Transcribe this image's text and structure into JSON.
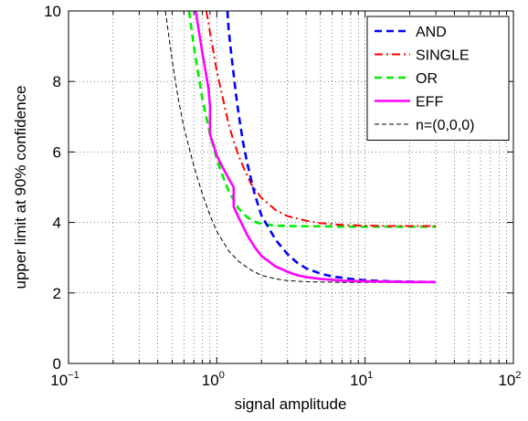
{
  "chart_data": {
    "type": "line",
    "title": "",
    "xlabel": "signal amplitude",
    "ylabel": "upper limit at 90% confidence",
    "xscale": "log",
    "xlim": [
      0.1,
      100
    ],
    "ylim": [
      0,
      10
    ],
    "grid": true,
    "legend_position": "top-right",
    "x_ticks": [
      {
        "base": "10",
        "exp": "−1"
      },
      {
        "base": "10",
        "exp": "0"
      },
      {
        "base": "10",
        "exp": "1"
      },
      {
        "base": "10",
        "exp": "2"
      }
    ],
    "y_ticks": [
      "0",
      "2",
      "4",
      "6",
      "8",
      "10"
    ],
    "series": [
      {
        "name": "AND",
        "color": "#0000ff",
        "style": "dashed",
        "x": [
          1.18,
          1.2,
          1.25,
          1.3,
          1.35,
          1.4,
          1.5,
          1.6,
          1.8,
          2.0,
          2.5,
          3.0,
          3.5,
          4.0,
          5.0,
          6.0,
          8.0,
          10.0,
          15.0,
          20.0,
          30.0
        ],
        "y": [
          10.0,
          9.5,
          8.8,
          8.2,
          7.6,
          7.1,
          6.3,
          5.7,
          4.8,
          4.2,
          3.5,
          3.1,
          2.85,
          2.7,
          2.55,
          2.47,
          2.4,
          2.36,
          2.33,
          2.32,
          2.31
        ]
      },
      {
        "name": "SINGLE",
        "color": "#ff0000",
        "style": "dash-dot",
        "x": [
          0.85,
          0.9,
          1.0,
          1.1,
          1.2,
          1.3,
          1.4,
          1.5,
          1.7,
          2.0,
          2.5,
          3.0,
          4.0,
          5.0,
          7.0,
          10.0,
          15.0,
          20.0,
          30.0
        ],
        "y": [
          10.0,
          9.4,
          8.3,
          7.5,
          6.8,
          6.3,
          5.9,
          5.6,
          5.1,
          4.7,
          4.35,
          4.18,
          4.05,
          3.98,
          3.93,
          3.91,
          3.9,
          3.9,
          3.9
        ]
      },
      {
        "name": "OR",
        "color": "#00ee00",
        "style": "dashed",
        "x": [
          0.65,
          0.7,
          0.75,
          0.8,
          0.9,
          1.0,
          1.1,
          1.2,
          1.4,
          1.6,
          1.8,
          2.0,
          2.5,
          3.0,
          4.0,
          5.0,
          7.0,
          10.0,
          15.0,
          20.0,
          30.0
        ],
        "y": [
          10.0,
          9.0,
          8.2,
          7.5,
          6.5,
          5.8,
          5.3,
          4.9,
          4.4,
          4.15,
          4.02,
          3.96,
          3.91,
          3.9,
          3.89,
          3.89,
          3.88,
          3.88,
          3.88,
          3.88,
          3.88
        ]
      },
      {
        "name": "EFF",
        "color": "#ff00ff",
        "style": "solid",
        "x": [
          0.72,
          0.8,
          0.88,
          0.9,
          0.9,
          0.95,
          1.0,
          1.1,
          1.2,
          1.3,
          1.3,
          1.4,
          1.6,
          1.8,
          2.0,
          2.5,
          3.0,
          3.5,
          4.0,
          5.0,
          7.0,
          10.0,
          15.0,
          20.0,
          30.0
        ],
        "y": [
          10.0,
          8.8,
          7.8,
          7.3,
          6.5,
          6.2,
          5.9,
          5.55,
          5.25,
          5.0,
          4.45,
          4.15,
          3.65,
          3.3,
          3.05,
          2.75,
          2.6,
          2.5,
          2.45,
          2.4,
          2.35,
          2.33,
          2.32,
          2.31,
          2.31
        ]
      },
      {
        "name": "n=(0,0,0)",
        "color": "#000000",
        "style": "thin-dashed",
        "x": [
          0.45,
          0.5,
          0.55,
          0.6,
          0.7,
          0.8,
          0.9,
          1.0,
          1.2,
          1.4,
          1.7,
          2.0,
          2.5,
          3.0,
          4.0,
          5.0,
          7.0,
          10.0,
          15.0,
          20.0,
          30.0
        ],
        "y": [
          10.0,
          8.6,
          7.5,
          6.7,
          5.6,
          4.8,
          4.2,
          3.75,
          3.2,
          2.9,
          2.65,
          2.5,
          2.4,
          2.35,
          2.32,
          2.31,
          2.3,
          2.3,
          2.3,
          2.3,
          2.3
        ]
      }
    ]
  }
}
